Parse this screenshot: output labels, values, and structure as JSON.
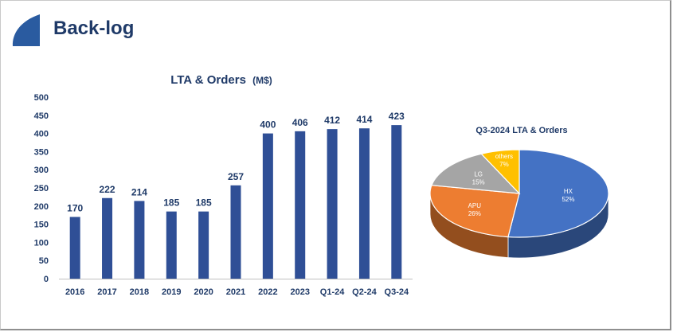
{
  "slide": {
    "title": "Back-log",
    "brand_color": "#2a5ba0",
    "title_color": "#1f3a68"
  },
  "chart_data": [
    {
      "type": "bar",
      "title": "LTA & Orders",
      "title_unit": "(M$)",
      "categories": [
        "2016",
        "2017",
        "2018",
        "2019",
        "2020",
        "2021",
        "2022",
        "2023",
        "Q1-24",
        "Q2-24",
        "Q3-24"
      ],
      "values": [
        170,
        222,
        214,
        185,
        185,
        257,
        400,
        406,
        412,
        414,
        423
      ],
      "data_labels": [
        "170",
        "222",
        "214",
        "185",
        "185",
        "257",
        "400",
        "406",
        "412",
        "414",
        "423"
      ],
      "ylim": [
        0,
        500
      ],
      "yticks": [
        "0",
        "50",
        "100",
        "150",
        "200",
        "250",
        "300",
        "350",
        "400",
        "450",
        "500"
      ],
      "xlabel": "",
      "ylabel": "",
      "grid": false,
      "bar_color": "#2f4f96"
    },
    {
      "type": "pie",
      "title": "Q3-2024 LTA & Orders",
      "slices": [
        {
          "name": "HX",
          "value": 52,
          "label": "52%",
          "color": "#4472c4"
        },
        {
          "name": "APU",
          "value": 26,
          "label": "26%",
          "color": "#ed7d31"
        },
        {
          "name": "LG",
          "value": 15,
          "label": "15%",
          "color": "#a5a5a5"
        },
        {
          "name": "others",
          "value": 7,
          "label": "7%",
          "color": "#ffc000"
        }
      ]
    }
  ]
}
